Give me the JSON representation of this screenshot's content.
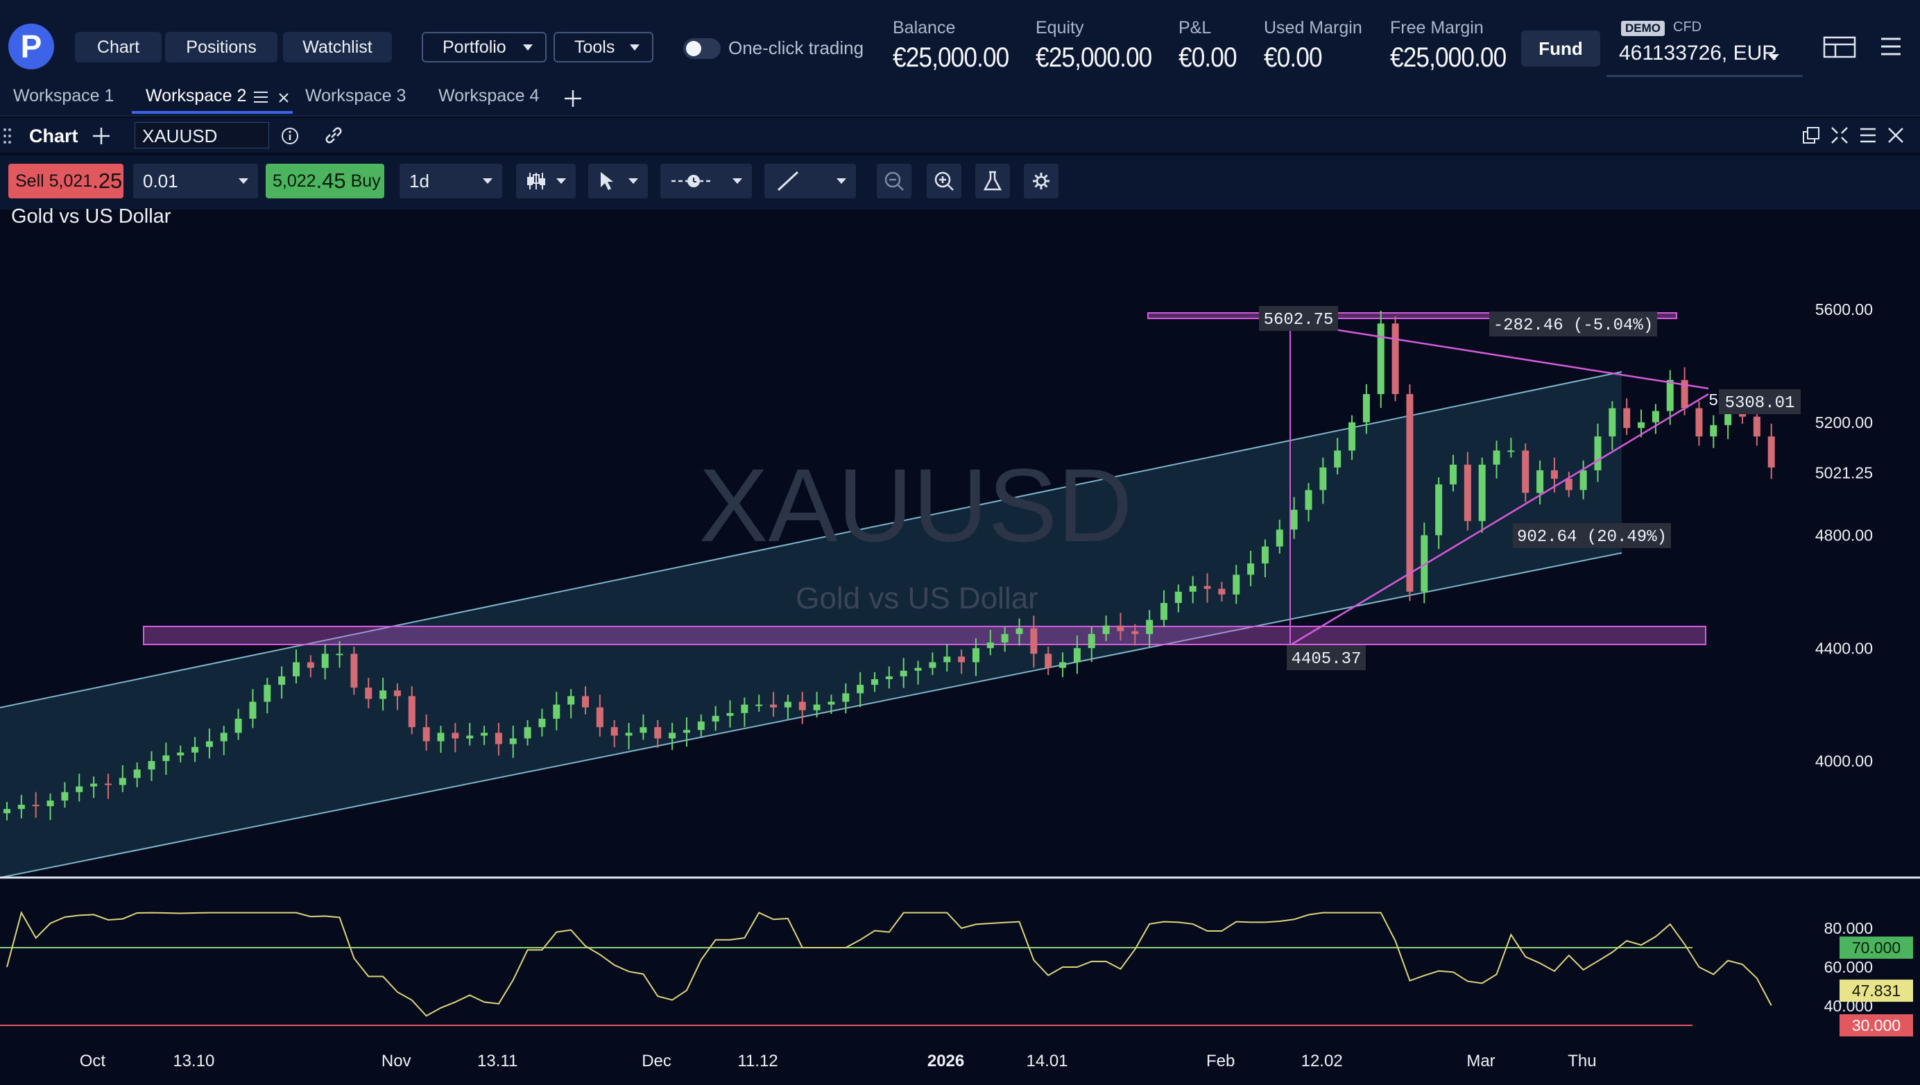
{
  "header": {
    "nav": [
      "Chart",
      "Positions",
      "Watchlist"
    ],
    "dropdowns": [
      "Portfolio",
      "Tools"
    ],
    "one_click_label": "One-click trading",
    "metrics": [
      {
        "label": "Balance",
        "value": "€25,000.00"
      },
      {
        "label": "Equity",
        "value": "€25,000.00"
      },
      {
        "label": "P&L",
        "value": "€0.00"
      },
      {
        "label": "Used Margin",
        "value": "€0.00"
      },
      {
        "label": "Free Margin",
        "value": "€25,000.00"
      }
    ],
    "fund_label": "Fund",
    "demo_badge": "DEMO",
    "account_type": "CFD",
    "account": "461133726, EUR",
    "logo_letter": "P"
  },
  "workspaces": {
    "tabs": [
      "Workspace 1",
      "Workspace 2",
      "Workspace 3",
      "Workspace 4"
    ],
    "active_index": 1
  },
  "panel": {
    "title": "Chart",
    "symbol": "XAUUSD"
  },
  "toolbar": {
    "sell_label": "Sell",
    "sell_price_main": "5,021",
    "sell_price_big": ".25",
    "quantity": "0.01",
    "buy_price_main": "5,022",
    "buy_price_big": ".45",
    "buy_label": "Buy",
    "timeframe": "1d"
  },
  "chart_title": "Gold vs US Dollar",
  "icons": {
    "colors": {
      "accent": "#3d63e8",
      "bull": "#6bd26f",
      "bear": "#d36b74",
      "zone": "#d45bd9",
      "channel": "#7fb5c9",
      "rsi": "#dcd57c",
      "rsi_upper": "#8fd27e",
      "rsi_lower": "#e2585f"
    }
  },
  "chart_data": {
    "type": "candlestick",
    "symbol": "XAUUSD",
    "watermark_symbol": "XAUUSD",
    "watermark_name": "Gold vs US Dollar",
    "y_ticks": [
      5600,
      5200,
      4800,
      4400,
      4000
    ],
    "ylim": [
      3750,
      5800
    ],
    "price_labels": [
      {
        "label": "5600.00",
        "value": 5600
      },
      {
        "label": "5200.00",
        "value": 5200
      },
      {
        "label": "5021.25",
        "value": 5021.25
      },
      {
        "label": "4800.00",
        "value": 4800
      },
      {
        "label": "4400.00",
        "value": 4400
      },
      {
        "label": "4000.00",
        "value": 4000
      }
    ],
    "x_labels": [
      {
        "label": "Oct",
        "day": 4,
        "bold": false
      },
      {
        "label": "13.10",
        "day": 11,
        "bold": false
      },
      {
        "label": "Nov",
        "day": 25,
        "bold": false
      },
      {
        "label": "13.11",
        "day": 32,
        "bold": false
      },
      {
        "label": "Dec",
        "day": 43,
        "bold": false
      },
      {
        "label": "11.12",
        "day": 50,
        "bold": false
      },
      {
        "label": "2026",
        "day": 63,
        "bold": true
      },
      {
        "label": "14.01",
        "day": 70,
        "bold": false
      },
      {
        "label": "Feb",
        "day": 82,
        "bold": false
      },
      {
        "label": "12.02",
        "day": 89,
        "bold": false
      },
      {
        "label": "Mar",
        "day": 100,
        "bold": false
      },
      {
        "label": "Thu",
        "day": 107,
        "bold": false
      }
    ],
    "closes": [
      3830,
      3845,
      3840,
      3860,
      3890,
      3910,
      3920,
      3915,
      3940,
      3970,
      4000,
      4020,
      4030,
      4050,
      4070,
      4100,
      4150,
      4210,
      4270,
      4300,
      4350,
      4330,
      4380,
      4380,
      4260,
      4220,
      4250,
      4230,
      4120,
      4070,
      4100,
      4080,
      4090,
      4100,
      4060,
      4080,
      4120,
      4150,
      4200,
      4230,
      4190,
      4120,
      4090,
      4100,
      4120,
      4080,
      4100,
      4110,
      4140,
      4160,
      4170,
      4200,
      4200,
      4190,
      4210,
      4180,
      4200,
      4210,
      4240,
      4270,
      4290,
      4300,
      4320,
      4330,
      4350,
      4370,
      4350,
      4400,
      4420,
      4450,
      4470,
      4380,
      4330,
      4350,
      4400,
      4450,
      4480,
      4460,
      4450,
      4500,
      4560,
      4600,
      4620,
      4610,
      4590,
      4660,
      4700,
      4760,
      4820,
      4890,
      4960,
      5040,
      5100,
      5200,
      5300,
      5550,
      5300,
      4600,
      4800,
      4980,
      5050,
      4850,
      5050,
      5100,
      5100,
      4950,
      5030,
      5000,
      4960,
      5030,
      5150,
      5250,
      5180,
      5200,
      5240,
      5350,
      5250,
      5150,
      5190,
      5230,
      5220,
      5150,
      5040
    ],
    "rsi": {
      "upper": 70,
      "lower": 30,
      "current": "47.831",
      "upper_label": "70.000",
      "lower_label": "30.000",
      "ticks": [
        "80.000",
        "60.000",
        "40.000"
      ]
    },
    "annotations": {
      "high_label": "5602.75",
      "low_label": "4405.37",
      "move_down": "-282.46 (-5.04%)",
      "move_up": "902.64 (20.49%)",
      "current_label": "5308.01",
      "current_prefix": "5"
    }
  }
}
